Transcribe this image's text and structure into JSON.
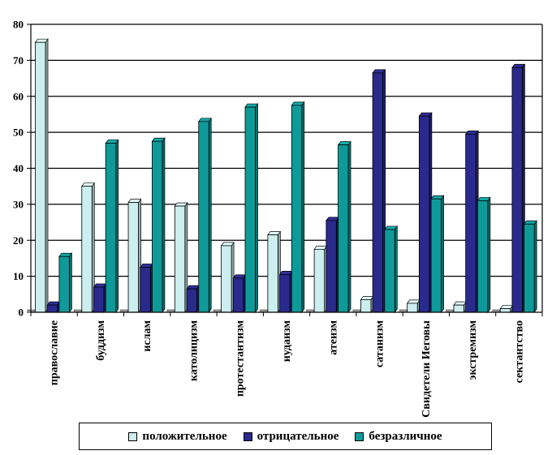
{
  "chart_data": {
    "type": "bar",
    "title": "",
    "xlabel": "",
    "ylabel": "",
    "ylim": [
      0,
      80
    ],
    "y_ticks": [
      "0",
      "10",
      "20",
      "30",
      "40",
      "50",
      "60",
      "70",
      "80"
    ],
    "grid": true,
    "legend_position": "bottom",
    "categories": [
      "православие",
      "буддизм",
      "ислам",
      "католицизм",
      "протестантизм",
      "иудаизм",
      "атеизм",
      "сатанизм",
      "Свидетели Иеговы",
      "экстремизм",
      "сектантство"
    ],
    "series": [
      {
        "name": "положительное",
        "color": "#cceeee",
        "values": [
          75,
          35,
          30.5,
          29.5,
          18.5,
          21.5,
          17.5,
          3.5,
          2.5,
          2,
          1
        ]
      },
      {
        "name": "отрицательное",
        "color": "#2a2a8c",
        "values": [
          2,
          7,
          12.5,
          6.5,
          9.5,
          10.5,
          25.5,
          66.5,
          54.5,
          49.5,
          68
        ]
      },
      {
        "name": "безразличное",
        "color": "#0e9a99",
        "values": [
          15.5,
          47,
          47.5,
          53,
          57,
          57.5,
          46.5,
          23,
          31.5,
          31,
          24.5
        ]
      }
    ]
  }
}
